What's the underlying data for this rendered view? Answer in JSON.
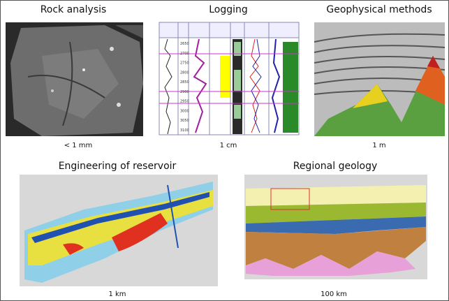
{
  "panels": [
    {
      "title": "Rock analysis",
      "scale": "< 1 mm"
    },
    {
      "title": "Logging",
      "scale": "1 cm",
      "depths": [
        "2650",
        "2700",
        "2750",
        "2800",
        "2850",
        "2900",
        "2950",
        "3000",
        "3050",
        "3100"
      ]
    },
    {
      "title": "Geophysical methods",
      "scale": "1 m"
    },
    {
      "title": "Engineering of reservoir",
      "scale": "1 km"
    },
    {
      "title": "Regional geology",
      "scale": "100 km"
    }
  ]
}
